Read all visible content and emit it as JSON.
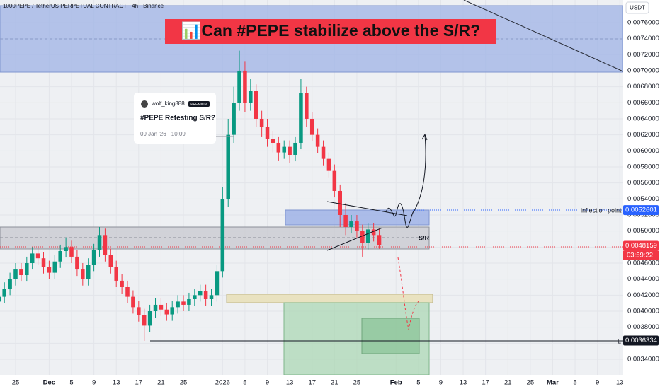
{
  "chart_data": {
    "type": "candlestick",
    "header": "1000PEPE / TetherUS PERPETUAL CONTRACT · 4h · Binance",
    "title": "📊Can #PEPE stabilize above the S/R?",
    "currency": "USDT",
    "idea": {
      "author": "wolf_king888",
      "badge": "PREMIUM",
      "headline": "#PEPE Retesting S/R?",
      "date": "09 Jan '26 · 10:09"
    },
    "annotations": {
      "sr": "S/R",
      "inflection": "inflection point",
      "low": "L",
      "countdown": "03:59:22"
    },
    "up_color": "#089981",
    "down_color": "#f23645",
    "grid": true,
    "xlim": [
      -2.785,
      108.6
    ],
    "ylim": [
      0.003206,
      0.007882
    ],
    "xticks": [
      {
        "value": 0,
        "label": "25"
      },
      {
        "value": 6,
        "label": "Dec"
      },
      {
        "value": 10,
        "label": "5"
      },
      {
        "value": 14,
        "label": "9"
      },
      {
        "value": 18,
        "label": "13"
      },
      {
        "value": 22,
        "label": "17"
      },
      {
        "value": 26,
        "label": "21"
      },
      {
        "value": 30,
        "label": "25"
      },
      {
        "value": 37,
        "label": "2026"
      },
      {
        "value": 41,
        "label": "5"
      },
      {
        "value": 45,
        "label": "9"
      },
      {
        "value": 49,
        "label": "13"
      },
      {
        "value": 53,
        "label": "17"
      },
      {
        "value": 57,
        "label": "21"
      },
      {
        "value": 61,
        "label": "25"
      },
      {
        "value": 68,
        "label": "Feb"
      },
      {
        "value": 72,
        "label": "5"
      },
      {
        "value": 76,
        "label": "9"
      },
      {
        "value": 80,
        "label": "13"
      },
      {
        "value": 84,
        "label": "17"
      },
      {
        "value": 88,
        "label": "21"
      },
      {
        "value": 92,
        "label": "25"
      },
      {
        "value": 96,
        "label": "Mar"
      },
      {
        "value": 100,
        "label": "5"
      },
      {
        "value": 104,
        "label": "9"
      },
      {
        "value": 108,
        "label": "13"
      }
    ],
    "yticks": [
      {
        "value": 0.0034,
        "label": "0.0034000"
      },
      {
        "value": 0.0036,
        "label": "0.0036000"
      },
      {
        "value": 0.0038,
        "label": "0.0038000"
      },
      {
        "value": 0.004,
        "label": "0.0040000"
      },
      {
        "value": 0.0042,
        "label": "0.0042000"
      },
      {
        "value": 0.0044,
        "label": "0.0044000"
      },
      {
        "value": 0.0046,
        "label": "0.0046000"
      },
      {
        "value": 0.0048,
        "label": "0.0048000"
      },
      {
        "value": 0.005,
        "label": "0.0050000"
      },
      {
        "value": 0.0052,
        "label": "0.0052000"
      },
      {
        "value": 0.0054,
        "label": "0.0054000"
      },
      {
        "value": 0.0056,
        "label": "0.0056000"
      },
      {
        "value": 0.0058,
        "label": "0.0058000"
      },
      {
        "value": 0.006,
        "label": "0.0060000"
      },
      {
        "value": 0.0062,
        "label": "0.0062000"
      },
      {
        "value": 0.0064,
        "label": "0.0064000"
      },
      {
        "value": 0.0066,
        "label": "0.0066000"
      },
      {
        "value": 0.0068,
        "label": "0.0068000"
      },
      {
        "value": 0.007,
        "label": "0.0070000"
      },
      {
        "value": 0.0072,
        "label": "0.0072000"
      },
      {
        "value": 0.0074,
        "label": "0.0074000"
      },
      {
        "value": 0.0076,
        "label": "0.0076000"
      }
    ],
    "price_tags": [
      {
        "value": 0.0052601,
        "color": "#2962ff"
      },
      {
        "value": 0.0048159,
        "color": "#f23645"
      },
      {
        "value": 0.0036334,
        "color": "#131722"
      }
    ],
    "x": [
      -3,
      -2,
      -1,
      0,
      1,
      2,
      3,
      4,
      5,
      6,
      7,
      8,
      9,
      10,
      11,
      12,
      13,
      14,
      15,
      16,
      17,
      18,
      19,
      20,
      21,
      22,
      23,
      24,
      25,
      26,
      27,
      28,
      29,
      30,
      31,
      32,
      33,
      34,
      35,
      36,
      37,
      38,
      39,
      40,
      41,
      42,
      43,
      44,
      45,
      46,
      47,
      48,
      49,
      50,
      51,
      52,
      53,
      54,
      55,
      56,
      57,
      58,
      59,
      60,
      61,
      62,
      63,
      64,
      65
    ],
    "open": [
      0.00412,
      0.00418,
      0.00428,
      0.0044,
      0.00452,
      0.00445,
      0.0046,
      0.00472,
      0.00466,
      0.00455,
      0.00448,
      0.00462,
      0.00475,
      0.0048,
      0.00468,
      0.00452,
      0.0044,
      0.00458,
      0.00476,
      0.00495,
      0.0047,
      0.00455,
      0.00438,
      0.0043,
      0.00418,
      0.00405,
      0.00395,
      0.00382,
      0.004,
      0.00408,
      0.00402,
      0.00396,
      0.00405,
      0.00412,
      0.00408,
      0.00415,
      0.0042,
      0.00425,
      0.00415,
      0.0042,
      0.0045,
      0.0054,
      0.0062,
      0.0066,
      0.007,
      0.0066,
      0.00675,
      0.0064,
      0.0063,
      0.00615,
      0.0061,
      0.00598,
      0.00605,
      0.00595,
      0.0061,
      0.00672,
      0.0064,
      0.0062,
      0.00605,
      0.0059,
      0.00575,
      0.0055,
      0.0052,
      0.00505,
      0.00512,
      0.005,
      0.00485,
      0.00502,
      0.00495
    ],
    "high": [
      0.00426,
      0.00436,
      0.00448,
      0.0046,
      0.0046,
      0.00468,
      0.0048,
      0.0048,
      0.00474,
      0.00463,
      0.0047,
      0.00483,
      0.00492,
      0.00488,
      0.00476,
      0.0046,
      0.00466,
      0.00484,
      0.00505,
      0.00503,
      0.00478,
      0.00463,
      0.00446,
      0.00438,
      0.00426,
      0.00413,
      0.00403,
      0.00408,
      0.00416,
      0.00416,
      0.0041,
      0.00413,
      0.0042,
      0.0042,
      0.00423,
      0.00428,
      0.00433,
      0.00433,
      0.00428,
      0.00458,
      0.00555,
      0.0064,
      0.0068,
      0.00725,
      0.00712,
      0.0069,
      0.00683,
      0.0065,
      0.0064,
      0.00625,
      0.00618,
      0.00613,
      0.00613,
      0.00618,
      0.0069,
      0.0068,
      0.00648,
      0.00628,
      0.00613,
      0.00598,
      0.00583,
      0.00558,
      0.00535,
      0.0052,
      0.0052,
      0.00508,
      0.0051,
      0.0051,
      0.00503
    ],
    "low": [
      0.00404,
      0.0041,
      0.0042,
      0.00432,
      0.00437,
      0.00437,
      0.00452,
      0.00458,
      0.00447,
      0.0044,
      0.0044,
      0.00454,
      0.00467,
      0.0046,
      0.00444,
      0.00432,
      0.00432,
      0.0045,
      0.00468,
      0.00462,
      0.00447,
      0.0043,
      0.00422,
      0.0041,
      0.00397,
      0.00387,
      0.00363,
      0.00374,
      0.00392,
      0.00394,
      0.00388,
      0.00388,
      0.00397,
      0.004,
      0.004,
      0.00407,
      0.00412,
      0.00407,
      0.00407,
      0.00412,
      0.00442,
      0.0053,
      0.0061,
      0.0065,
      0.00648,
      0.0065,
      0.0063,
      0.00618,
      0.00605,
      0.00598,
      0.00588,
      0.0059,
      0.00585,
      0.00587,
      0.00602,
      0.0063,
      0.00612,
      0.00597,
      0.00582,
      0.00567,
      0.00542,
      0.00505,
      0.00495,
      0.00497,
      0.00492,
      0.00468,
      0.00477,
      0.00487,
      0.00478
    ],
    "close": [
      0.00418,
      0.00428,
      0.0044,
      0.00452,
      0.00445,
      0.0046,
      0.00472,
      0.00466,
      0.00455,
      0.00448,
      0.00462,
      0.00475,
      0.0048,
      0.00468,
      0.00452,
      0.0044,
      0.00458,
      0.00476,
      0.00495,
      0.0047,
      0.00455,
      0.00438,
      0.0043,
      0.00418,
      0.00405,
      0.00395,
      0.00382,
      0.004,
      0.00408,
      0.00402,
      0.00396,
      0.00405,
      0.00412,
      0.00408,
      0.00415,
      0.0042,
      0.00425,
      0.00415,
      0.0042,
      0.0045,
      0.0054,
      0.0062,
      0.0066,
      0.007,
      0.0066,
      0.00675,
      0.0064,
      0.0063,
      0.00615,
      0.0061,
      0.00598,
      0.00605,
      0.00595,
      0.0061,
      0.00672,
      0.0064,
      0.0062,
      0.00605,
      0.0059,
      0.00575,
      0.0055,
      0.0052,
      0.00505,
      0.00512,
      0.005,
      0.00485,
      0.00502,
      0.00495,
      0.00482
    ]
  }
}
